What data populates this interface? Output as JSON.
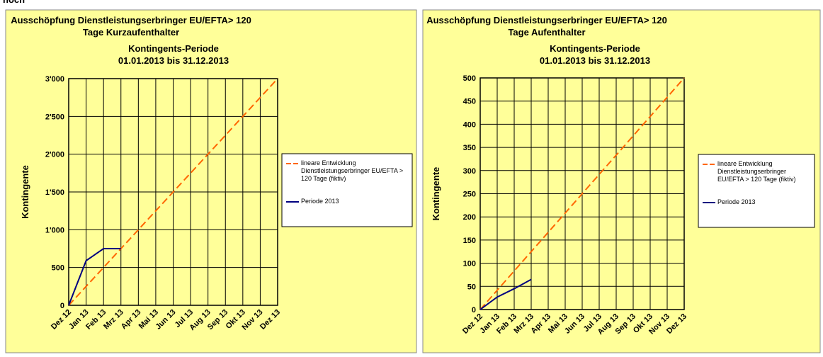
{
  "heading": "noch",
  "chart_data": [
    {
      "type": "line",
      "title": [
        "Ausschöpfung Dienstleistungserbringer EU/EFTA> 120",
        "Tage Kurzaufenthalter"
      ],
      "subtitle": [
        "Kontingents-Periode",
        "01.01.2013 bis 31.12.2013"
      ],
      "y_label": "Kontingente",
      "categories": [
        "Dez 12",
        "Jan 13",
        "Feb 13",
        "Mrz 13",
        "Apr 13",
        "Mai 13",
        "Jun 13",
        "Jul 13",
        "Aug 13",
        "Sep 13",
        "Okt 13",
        "Nov 13",
        "Dez 13"
      ],
      "ylim": [
        0,
        3000
      ],
      "yticks": [
        0,
        500,
        {
          "value": 1000,
          "label": "1'000"
        },
        {
          "value": 1500,
          "label": "1'500"
        },
        {
          "value": 2000,
          "label": "2'000"
        },
        {
          "value": 2500,
          "label": "2'500"
        },
        {
          "value": 3000,
          "label": "3'000"
        }
      ],
      "grid": true,
      "series": [
        {
          "name": "lineare Entwicklung Dienstleistungserbringer EU/EFTA > 120 Tage (fiktiv)",
          "color": "#ff6600",
          "dashed": true,
          "values": [
            0,
            250,
            500,
            750,
            1000,
            1250,
            1500,
            1750,
            2000,
            2250,
            2500,
            2750,
            3000
          ]
        },
        {
          "name": "Periode 2013",
          "color": "#000080",
          "dashed": false,
          "values": [
            0,
            590,
            750,
            750,
            null,
            null,
            null,
            null,
            null,
            null,
            null,
            null,
            null
          ]
        }
      ]
    },
    {
      "type": "line",
      "title": [
        "Ausschöpfung Dienstleistungserbringer EU/EFTA> 120",
        "Tage Aufenthalter"
      ],
      "subtitle": [
        "Kontingents-Periode",
        "01.01.2013 bis 31.12.2013"
      ],
      "y_label": "Kontingente",
      "categories": [
        "Dez 12",
        "Jan 13",
        "Feb 13",
        "Mrz 13",
        "Apr 13",
        "Mai 13",
        "Jun 13",
        "Jul 13",
        "Aug 13",
        "Sep 13",
        "Okt 13",
        "Nov 13",
        "Dez 13"
      ],
      "ylim": [
        0,
        500
      ],
      "yticks": [
        0,
        50,
        100,
        150,
        200,
        250,
        300,
        350,
        400,
        450,
        500
      ],
      "grid": true,
      "series": [
        {
          "name": "lineare Entwicklung Dienstleistungserbringer EU/EFTA > 120 Tage (fiktiv)",
          "color": "#ff6600",
          "dashed": true,
          "values": [
            0,
            41.7,
            83.3,
            125,
            166.7,
            208.3,
            250,
            291.7,
            333.3,
            375,
            416.7,
            458.3,
            500
          ]
        },
        {
          "name": "Periode 2013",
          "color": "#000080",
          "dashed": false,
          "values": [
            0,
            27,
            45,
            65,
            null,
            null,
            null,
            null,
            null,
            null,
            null,
            null,
            null
          ]
        }
      ]
    }
  ]
}
